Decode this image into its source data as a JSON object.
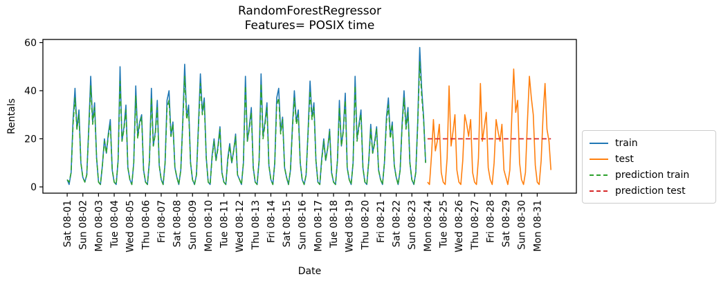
{
  "figure": {
    "title_line1": "RandomForestRegressor",
    "title_line2": "Features= POSIX time"
  },
  "legend": {
    "entries": [
      {
        "label": "train"
      },
      {
        "label": "test"
      },
      {
        "label": "prediction train"
      },
      {
        "label": "prediction test"
      }
    ]
  },
  "chart_data": {
    "type": "line",
    "title": "RandomForestRegressor\nFeatures= POSIX time",
    "xlabel": "Date",
    "ylabel": "Rentals",
    "yticks": [
      0,
      20,
      40,
      60
    ],
    "ylim": [
      -2.6,
      61.3
    ],
    "xlim_days": [
      -1.55,
      32.5
    ],
    "grid": false,
    "legend_position": "outside-right",
    "xtick_labels": [
      "Sat 08-01",
      "Sun 08-02",
      "Mon 08-03",
      "Tue 08-04",
      "Wed 08-05",
      "Thu 08-06",
      "Fri 08-07",
      "Sat 08-08",
      "Sun 08-09",
      "Mon 08-10",
      "Tue 08-11",
      "Wed 08-12",
      "Thu 08-13",
      "Fri 08-14",
      "Sat 08-15",
      "Sun 08-16",
      "Mon 08-17",
      "Tue 08-18",
      "Wed 08-19",
      "Thu 08-20",
      "Fri 08-21",
      "Sat 08-22",
      "Sun 08-23",
      "Mon 08-24",
      "Tue 08-25",
      "Wed 08-26",
      "Thu 08-27",
      "Fri 08-28",
      "Sat 08-29",
      "Sun 08-30",
      "Mon 08-31"
    ],
    "sample_hours": [
      0,
      3,
      6,
      9,
      12,
      15,
      18,
      21
    ],
    "hours_per_point": 3,
    "series": [
      {
        "name": "train",
        "color": "#1f77b4",
        "style": "solid",
        "day_start": 0,
        "days": [
          [
            3,
            1,
            6,
            28,
            41,
            24,
            32,
            10
          ],
          [
            4,
            2,
            5,
            24,
            46,
            27,
            35,
            12
          ],
          [
            2,
            1,
            9,
            20,
            14,
            22,
            28,
            7
          ],
          [
            2,
            1,
            11,
            50,
            19,
            25,
            34,
            8
          ],
          [
            3,
            1,
            10,
            42,
            21,
            27,
            30,
            7
          ],
          [
            2,
            1,
            11,
            41,
            17,
            23,
            36,
            9
          ],
          [
            3,
            1,
            10,
            36,
            40,
            21,
            27,
            8
          ],
          [
            4,
            1,
            7,
            27,
            51,
            29,
            34,
            10
          ],
          [
            3,
            1,
            5,
            25,
            47,
            31,
            37,
            12
          ],
          [
            2,
            1,
            13,
            20,
            11,
            17,
            25,
            6
          ],
          [
            2,
            1,
            12,
            18,
            10,
            15,
            22,
            5
          ],
          [
            3,
            1,
            10,
            46,
            19,
            25,
            33,
            8
          ],
          [
            2,
            1,
            11,
            47,
            21,
            27,
            35,
            9
          ],
          [
            3,
            1,
            10,
            37,
            41,
            23,
            29,
            8
          ],
          [
            4,
            1,
            7,
            25,
            40,
            27,
            32,
            10
          ],
          [
            3,
            1,
            5,
            23,
            44,
            29,
            35,
            11
          ],
          [
            2,
            1,
            12,
            20,
            11,
            16,
            24,
            6
          ],
          [
            2,
            1,
            11,
            36,
            17,
            24,
            39,
            8
          ],
          [
            3,
            1,
            10,
            46,
            20,
            26,
            32,
            8
          ],
          [
            2,
            1,
            11,
            26,
            14,
            19,
            25,
            7
          ],
          [
            3,
            1,
            10,
            29,
            37,
            21,
            27,
            9
          ],
          [
            4,
            1,
            7,
            26,
            40,
            25,
            33,
            10
          ],
          [
            3,
            1,
            6,
            27,
            58,
            41,
            29,
            10
          ]
        ]
      },
      {
        "name": "test",
        "color": "#ff7f0e",
        "style": "solid",
        "day_start": 23,
        "days": [
          [
            2,
            1,
            13,
            28,
            15,
            19,
            26,
            6
          ],
          [
            2,
            1,
            12,
            42,
            17,
            23,
            30,
            7
          ],
          [
            2,
            1,
            11,
            30,
            26,
            21,
            28,
            6
          ],
          [
            2,
            1,
            12,
            43,
            19,
            25,
            31,
            8
          ],
          [
            3,
            1,
            10,
            28,
            23,
            19,
            26,
            7
          ],
          [
            4,
            1,
            7,
            29,
            49,
            31,
            36,
            10
          ],
          [
            3,
            1,
            6,
            27,
            46,
            37,
            30,
            9
          ],
          [
            2,
            1,
            11,
            30,
            43,
            24,
            19,
            7
          ]
        ]
      },
      {
        "name": "prediction train",
        "color": "#2ca02c",
        "style": "dashed",
        "day_start": 0,
        "days": [
          [
            3,
            2,
            6,
            26,
            37,
            24,
            30,
            10
          ],
          [
            4,
            2,
            5,
            23,
            42,
            26,
            33,
            12
          ],
          [
            2,
            1,
            9,
            19,
            14,
            21,
            26,
            7
          ],
          [
            2,
            1,
            11,
            44,
            19,
            24,
            32,
            8
          ],
          [
            3,
            1,
            10,
            38,
            20,
            26,
            29,
            7
          ],
          [
            2,
            1,
            11,
            37,
            17,
            22,
            33,
            9
          ],
          [
            3,
            1,
            10,
            33,
            36,
            21,
            26,
            8
          ],
          [
            4,
            1,
            7,
            26,
            46,
            28,
            32,
            10
          ],
          [
            3,
            1,
            5,
            24,
            43,
            30,
            35,
            12
          ],
          [
            2,
            1,
            12,
            19,
            11,
            16,
            24,
            6
          ],
          [
            2,
            1,
            11,
            17,
            10,
            15,
            21,
            5
          ],
          [
            3,
            1,
            10,
            42,
            19,
            24,
            31,
            8
          ],
          [
            2,
            1,
            11,
            43,
            20,
            26,
            33,
            9
          ],
          [
            3,
            1,
            10,
            34,
            37,
            22,
            28,
            8
          ],
          [
            4,
            1,
            7,
            24,
            37,
            26,
            30,
            10
          ],
          [
            3,
            1,
            5,
            22,
            40,
            28,
            33,
            11
          ],
          [
            2,
            1,
            11,
            19,
            11,
            16,
            23,
            6
          ],
          [
            2,
            1,
            11,
            33,
            17,
            23,
            36,
            8
          ],
          [
            3,
            1,
            10,
            42,
            19,
            25,
            30,
            8
          ],
          [
            2,
            1,
            11,
            24,
            14,
            18,
            24,
            7
          ],
          [
            3,
            1,
            10,
            27,
            34,
            20,
            26,
            9
          ],
          [
            4,
            1,
            7,
            25,
            37,
            24,
            31,
            10
          ],
          [
            3,
            1,
            6,
            26,
            52,
            38,
            28,
            10
          ]
        ]
      },
      {
        "name": "prediction test",
        "color": "#d62728",
        "style": "dashed",
        "constant_value": 20,
        "day_start": 23,
        "day_end": 30.875
      }
    ]
  }
}
